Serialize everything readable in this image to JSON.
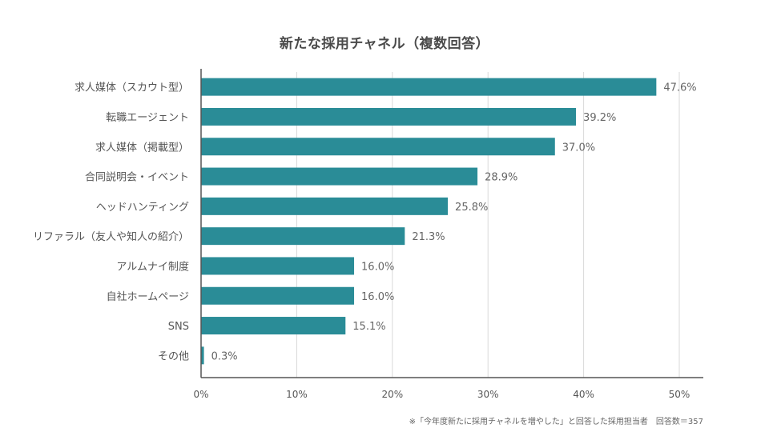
{
  "chart_data": {
    "type": "bar",
    "orientation": "horizontal",
    "title": "新たな採用チャネル（複数回答）",
    "categories": [
      "求人媒体（スカウト型）",
      "転職エージェント",
      "求人媒体（掲載型）",
      "合同説明会・イベント",
      "ヘッドハンティング",
      "リファラル（友人や知人の紹介）",
      "アルムナイ制度",
      "自社ホームページ",
      "SNS",
      "その他"
    ],
    "values": [
      47.6,
      39.2,
      37.0,
      28.9,
      25.8,
      21.3,
      16.0,
      16.0,
      15.1,
      0.3
    ],
    "value_labels": [
      "47.6%",
      "39.2%",
      "37.0%",
      "28.9%",
      "25.8%",
      "21.3%",
      "16.0%",
      "16.0%",
      "15.1%",
      "0.3%"
    ],
    "xlim": [
      0,
      50
    ],
    "xticks": [
      0,
      10,
      20,
      30,
      40,
      50
    ],
    "xtick_labels": [
      "0%",
      "10%",
      "20%",
      "30%",
      "40%",
      "50%"
    ],
    "grid": "vertical",
    "bar_color": "#2a8c97",
    "note": "※「今年度新たに採用チャネルを増やした」と回答した採用担当者　回答数＝357"
  }
}
